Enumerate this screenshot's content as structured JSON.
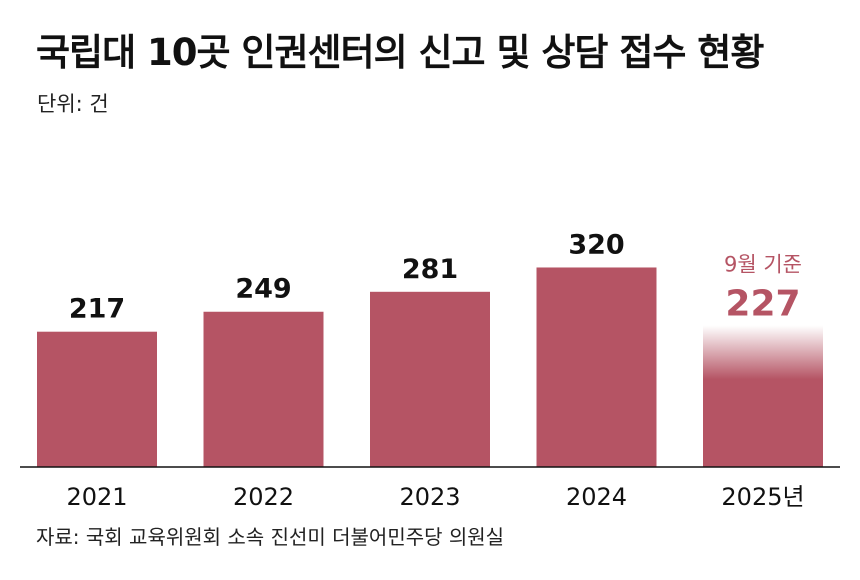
{
  "title": "국립대 10곳 인권센터의 신고 및 상담 접수 현황",
  "unit_label": "단위: 건",
  "source": "자료: 국회 교육위원회 소속 진선미 더불어민주당 의원실",
  "colors": {
    "bar": "#b55464",
    "highlight_text": "#b55464",
    "axis": "#111111",
    "text": "#111111"
  },
  "chart_data": {
    "type": "bar",
    "title": "국립대 10곳 인권센터의 신고 및 상담 접수 현황",
    "xlabel": "",
    "ylabel": "",
    "unit": "건",
    "categories": [
      "2021",
      "2022",
      "2023",
      "2024",
      "2025년"
    ],
    "values": [
      217,
      249,
      281,
      320,
      227
    ],
    "value_labels": [
      "217",
      "249",
      "281",
      "320",
      "227"
    ],
    "annotation": {
      "category": "2025년",
      "text": "9월 기준",
      "partial": true
    },
    "ylim": [
      0,
      400
    ],
    "grid": false,
    "legend": "none"
  }
}
